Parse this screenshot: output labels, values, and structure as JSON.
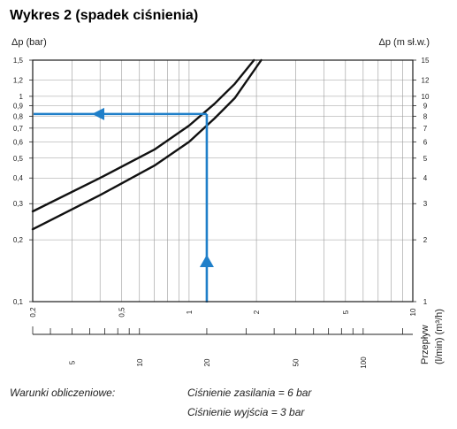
{
  "chart_data": {
    "type": "line",
    "title": "Wykres 2 (spadek ciśnienia)",
    "ylabel_left": "Δp (bar)",
    "ylabel_right": "Δp (m sł.w.)",
    "xlabel_top": "Przepływ",
    "xlabel_units": "(l/min)  (m³/h)",
    "y_scale": "log",
    "x_scale": "log",
    "ylim": [
      0.1,
      1.5
    ],
    "xlim_m3h": [
      0.2,
      10
    ],
    "xlim_lmin": [
      3.333,
      166.67
    ],
    "grid": true,
    "y_ticks_left": [
      "0,1",
      "0,2",
      "0,3",
      "0,4",
      "0,5",
      "0,6",
      "0,7",
      "0,8",
      "0,9",
      "1",
      "1,2",
      "1,5"
    ],
    "y_ticks_right": [
      "1",
      "2",
      "3",
      "4",
      "5",
      "6",
      "7",
      "8",
      "9",
      "10",
      "12",
      "15"
    ],
    "x_ticks_m3h": [
      "0,2",
      "0,5",
      "1",
      "2",
      "5",
      "10"
    ],
    "x_ticks_lmin": [
      "5",
      "10",
      "20",
      "50",
      "100"
    ],
    "series": [
      {
        "x": [
          0.2,
          0.4,
          0.7,
          1.0,
          1.3,
          1.6,
          1.95
        ],
        "y": [
          0.275,
          0.4,
          0.55,
          0.72,
          0.92,
          1.15,
          1.5
        ]
      },
      {
        "x": [
          0.2,
          0.4,
          0.7,
          1.0,
          1.3,
          1.6,
          2.1
        ],
        "y": [
          0.225,
          0.33,
          0.46,
          0.6,
          0.78,
          0.98,
          1.5
        ]
      }
    ],
    "annotation": {
      "x_m3h": 1.2,
      "y_bar": 0.82,
      "color": "#1f7fc9"
    },
    "line_color": "#111111"
  },
  "footer": {
    "conditions_label": "Warunki obliczeniowe:",
    "supply_pressure": "Ciśnienie zasilania = 6 bar",
    "outlet_pressure": "Ciśnienie wyjścia = 3 bar"
  }
}
